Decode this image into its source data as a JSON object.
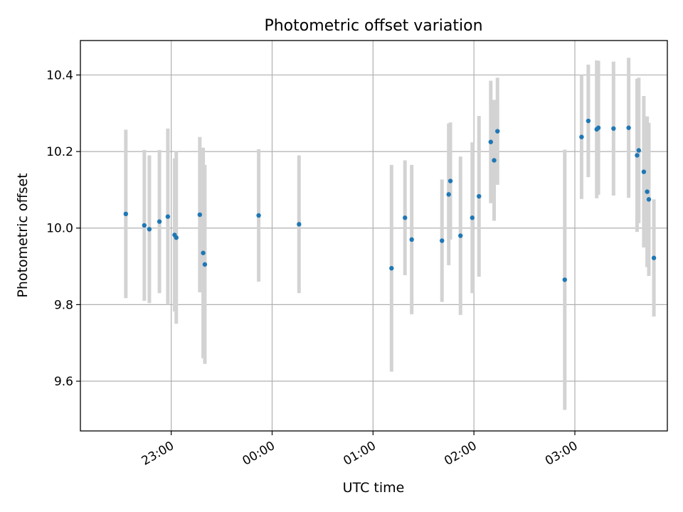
{
  "chart_data": {
    "type": "scatter",
    "title": "Photometric offset variation",
    "xlabel": "UTC time",
    "ylabel": "Photometric offset",
    "xlim": [
      "22:06",
      "03:55"
    ],
    "ylim": [
      9.47,
      10.49
    ],
    "xticks": [
      "23:00",
      "00:00",
      "01:00",
      "02:00",
      "03:00"
    ],
    "yticks": [
      9.6,
      9.8,
      10.0,
      10.2,
      10.4
    ],
    "grid": true,
    "marker_color": "#1f77b4",
    "errorbar_color": "#d3d3d3",
    "points": [
      {
        "x": "22:33",
        "y": 10.037,
        "err": 0.22
      },
      {
        "x": "22:44",
        "y": 10.007,
        "err": 0.197
      },
      {
        "x": "22:47",
        "y": 9.997,
        "err": 0.193
      },
      {
        "x": "22:53",
        "y": 10.017,
        "err": 0.187
      },
      {
        "x": "22:58",
        "y": 10.03,
        "err": 0.23
      },
      {
        "x": "23:02",
        "y": 9.982,
        "err": 0.2
      },
      {
        "x": "23:03",
        "y": 9.975,
        "err": 0.225
      },
      {
        "x": "23:17",
        "y": 10.035,
        "err": 0.203
      },
      {
        "x": "23:19",
        "y": 9.935,
        "err": 0.275
      },
      {
        "x": "23:20",
        "y": 9.905,
        "err": 0.26
      },
      {
        "x": "23:52",
        "y": 10.033,
        "err": 0.173
      },
      {
        "x": "00:16",
        "y": 10.01,
        "err": 0.18
      },
      {
        "x": "01:11",
        "y": 9.895,
        "err": 0.27
      },
      {
        "x": "01:19",
        "y": 10.027,
        "err": 0.15
      },
      {
        "x": "01:23",
        "y": 9.97,
        "err": 0.195
      },
      {
        "x": "01:41",
        "y": 9.967,
        "err": 0.16
      },
      {
        "x": "01:45",
        "y": 10.088,
        "err": 0.185
      },
      {
        "x": "01:46",
        "y": 10.123,
        "err": 0.153
      },
      {
        "x": "01:52",
        "y": 9.98,
        "err": 0.207
      },
      {
        "x": "01:59",
        "y": 10.027,
        "err": 0.197
      },
      {
        "x": "02:03",
        "y": 10.083,
        "err": 0.21
      },
      {
        "x": "02:10",
        "y": 10.225,
        "err": 0.16
      },
      {
        "x": "02:12",
        "y": 10.177,
        "err": 0.158
      },
      {
        "x": "02:14",
        "y": 10.253,
        "err": 0.14
      },
      {
        "x": "02:54",
        "y": 9.865,
        "err": 0.34
      },
      {
        "x": "03:04",
        "y": 10.238,
        "err": 0.162
      },
      {
        "x": "03:08",
        "y": 10.28,
        "err": 0.147
      },
      {
        "x": "03:13",
        "y": 10.258,
        "err": 0.18
      },
      {
        "x": "03:14",
        "y": 10.262,
        "err": 0.175
      },
      {
        "x": "03:23",
        "y": 10.26,
        "err": 0.175
      },
      {
        "x": "03:32",
        "y": 10.262,
        "err": 0.183
      },
      {
        "x": "03:37",
        "y": 10.19,
        "err": 0.2
      },
      {
        "x": "03:38",
        "y": 10.203,
        "err": 0.19
      },
      {
        "x": "03:41",
        "y": 10.147,
        "err": 0.198
      },
      {
        "x": "03:43",
        "y": 10.095,
        "err": 0.197
      },
      {
        "x": "03:44",
        "y": 10.075,
        "err": 0.2
      },
      {
        "x": "03:47",
        "y": 9.922,
        "err": 0.153
      }
    ]
  }
}
